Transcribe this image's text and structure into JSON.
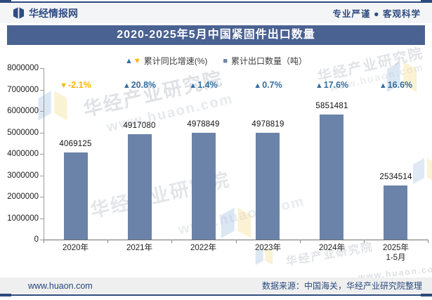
{
  "header": {
    "brand": "华经情报网",
    "tagline": "专业严谨 ● 客观科学"
  },
  "title": "2020-2025年5月中国紧固件出口数量",
  "legend": {
    "growth_label": "累计同比增速(%)",
    "quantity_label": "累计出口数量（吨）"
  },
  "chart_data": {
    "type": "bar",
    "title": "2020-2025年5月中国紧固件出口数量",
    "categories": [
      "2020年",
      "2021年",
      "2022年",
      "2023年",
      "2024年",
      "2025年\n1-5月"
    ],
    "series": [
      {
        "name": "累计出口数量（吨）",
        "type": "bar",
        "values": [
          4069125,
          4917080,
          4978849,
          4978819,
          5851481,
          2534514
        ],
        "color": "#6B83A9"
      },
      {
        "name": "累计同比增速(%)",
        "type": "marker",
        "values": [
          -2.1,
          20.8,
          1.4,
          0.7,
          17.6,
          16.6
        ],
        "labels": [
          "-2.1%",
          "20.8%",
          "1.4%",
          "0.7%",
          "17.6%",
          "16.6%"
        ],
        "positive_color": "#336E9E",
        "negative_color": "#FFB400"
      }
    ],
    "xlabel": "",
    "ylabel": "",
    "ylim": [
      0,
      8000000
    ],
    "ytick_step": 1000000,
    "grid": false,
    "legend_position": "top"
  },
  "watermarks": {
    "brand": "华经产业研究院",
    "url": "www.huaon.com"
  },
  "footer": {
    "site": "www.huaon.com",
    "source": "数据来源：中国海关，华经产业研究院整理"
  },
  "colors": {
    "banner": "#4A6292",
    "frame_line": "#2B4A7D",
    "header_text": "#2E4C80",
    "bar": "#6B83A9",
    "growth_up": "#336E9E",
    "growth_down": "#FFB400"
  }
}
